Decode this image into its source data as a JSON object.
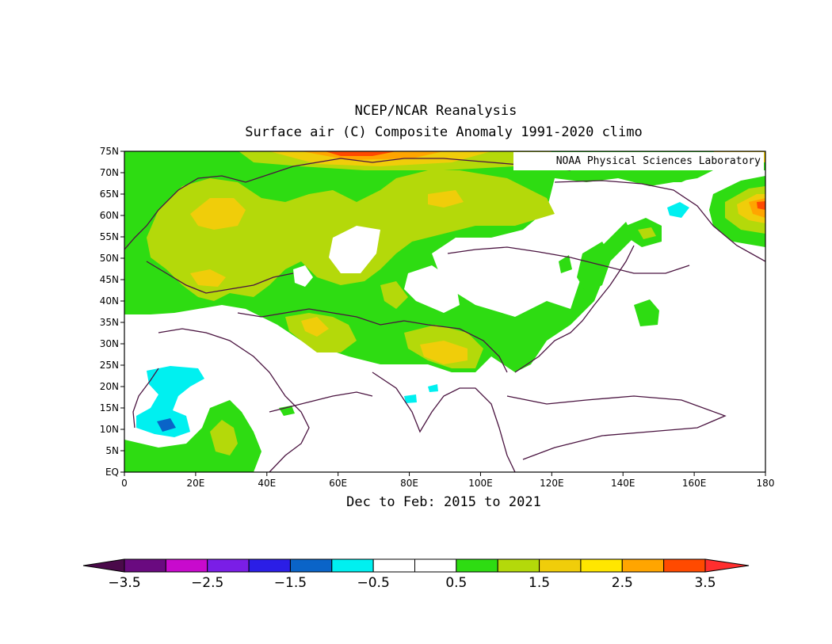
{
  "title": "NCEP/NCAR Reanalysis",
  "subtitle": "Surface air (C) Composite Anomaly 1991-2020 climo",
  "period": "Dec to Feb: 2015 to 2021",
  "credit": "NOAA Physical Sciences Laboratory",
  "map": {
    "lon_range": [
      0,
      180
    ],
    "lat_range": [
      0,
      75
    ],
    "lon_ticks": [
      "0",
      "20E",
      "40E",
      "60E",
      "80E",
      "100E",
      "120E",
      "140E",
      "160E",
      "180"
    ],
    "lat_ticks": [
      "EQ",
      "5N",
      "10N",
      "15N",
      "20N",
      "25N",
      "30N",
      "35N",
      "40N",
      "45N",
      "50N",
      "55N",
      "60N",
      "65N",
      "70N",
      "75N"
    ]
  },
  "colorbar": {
    "colors": [
      "#4a0a4a",
      "#6a0a80",
      "#c80acd",
      "#7a1ee6",
      "#2b1ee6",
      "#0a64c8",
      "#00f0f0",
      "#ffffff",
      "#ffffff",
      "#2edc12",
      "#b4d90a",
      "#f0cd0a",
      "#ffe600",
      "#ffa500",
      "#ff4a00",
      "#ff2e2e"
    ],
    "labels": [
      "-3.5",
      "-2.5",
      "-1.5",
      "-0.5",
      "0.5",
      "1.5",
      "2.5",
      "3.5"
    ]
  }
}
